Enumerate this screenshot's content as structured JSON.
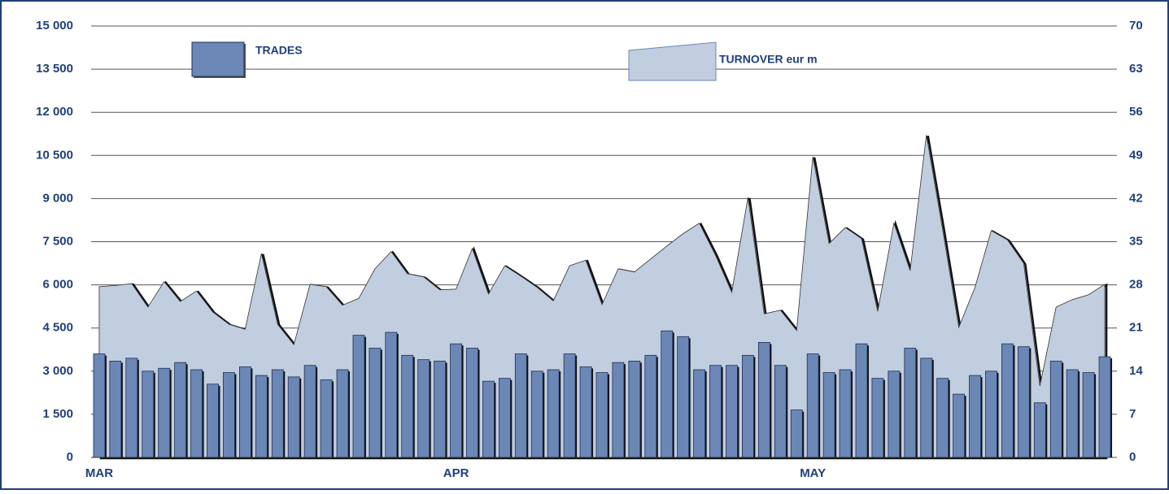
{
  "chart_data": {
    "type": "bar",
    "categories": [
      "MAR",
      null,
      null,
      null,
      null,
      null,
      null,
      null,
      null,
      null,
      null,
      null,
      null,
      null,
      null,
      null,
      null,
      null,
      null,
      null,
      null,
      null,
      "APR",
      null,
      null,
      null,
      null,
      null,
      null,
      null,
      null,
      null,
      null,
      null,
      null,
      null,
      null,
      null,
      null,
      null,
      null,
      null,
      null,
      null,
      "MAY",
      null,
      null,
      null,
      null,
      null,
      null,
      null,
      null,
      null,
      null,
      null,
      null,
      null,
      null,
      null,
      null,
      null,
      null
    ],
    "series": [
      {
        "name": "TRADES",
        "type": "bar",
        "color": "#6b87b5",
        "values": [
          3600,
          3350,
          3450,
          3000,
          3100,
          3300,
          3050,
          2550,
          2950,
          3150,
          2850,
          3050,
          2800,
          3200,
          2700,
          3050,
          4250,
          3800,
          4350,
          3550,
          3400,
          3350,
          3950,
          3800,
          2650,
          2750,
          3600,
          3000,
          3050,
          3600,
          3150,
          2950,
          3300,
          3350,
          3550,
          4400,
          4200,
          3050,
          3200,
          3200,
          3550,
          4000,
          3200,
          1650,
          3600,
          2950,
          3050,
          3950,
          2750,
          3000,
          3800,
          3450,
          2750,
          2200,
          2850,
          3000,
          3950,
          3850,
          1900,
          3350,
          3050,
          2950,
          3500
        ]
      },
      {
        "name": "TURNOVER eur m",
        "type": "area",
        "axis": "y2",
        "color": "#c0cee0",
        "values": [
          27.7,
          27.9,
          28.2,
          24.4,
          28.5,
          25.3,
          27.0,
          23.6,
          21.6,
          20.8,
          33.1,
          21.6,
          18.3,
          28.1,
          27.7,
          24.7,
          25.8,
          30.6,
          33.4,
          29.8,
          29.3,
          27.2,
          27.3,
          33.9,
          26.5,
          31.1,
          29.4,
          27.6,
          25.4,
          31.1,
          32.0,
          24.8,
          30.6,
          30.1,
          32.2,
          34.3,
          36.3,
          38.0,
          32.8,
          26.8,
          42.2,
          23.3,
          23.9,
          20.6,
          48.8,
          34.7,
          37.3,
          35.5,
          23.7,
          38.0,
          30.3,
          52.3,
          37.0,
          21.1,
          27.6,
          36.8,
          35.3,
          31.5,
          11.6,
          24.4,
          25.6,
          26.4,
          28.1
        ]
      }
    ],
    "ylim": [
      0,
      15000
    ],
    "yticks": [
      0,
      {
        "value": 1500,
        "label": "1 500"
      },
      {
        "value": 3000,
        "label": "3 000"
      },
      {
        "value": 4500,
        "label": "4 500"
      },
      {
        "value": 6000,
        "label": "6 000"
      },
      {
        "value": 7500,
        "label": "7 500"
      },
      {
        "value": 9000,
        "label": "9 000"
      },
      {
        "value": 10500,
        "label": "10 500"
      },
      {
        "value": 12000,
        "label": "12 000"
      },
      {
        "value": 13500,
        "label": "13 500"
      },
      {
        "value": 15000,
        "label": "15 000"
      }
    ],
    "y2lim": [
      0,
      70
    ],
    "y2ticks": [
      0,
      7,
      14,
      21,
      28,
      35,
      42,
      49,
      56,
      63,
      70
    ],
    "grid": true
  }
}
